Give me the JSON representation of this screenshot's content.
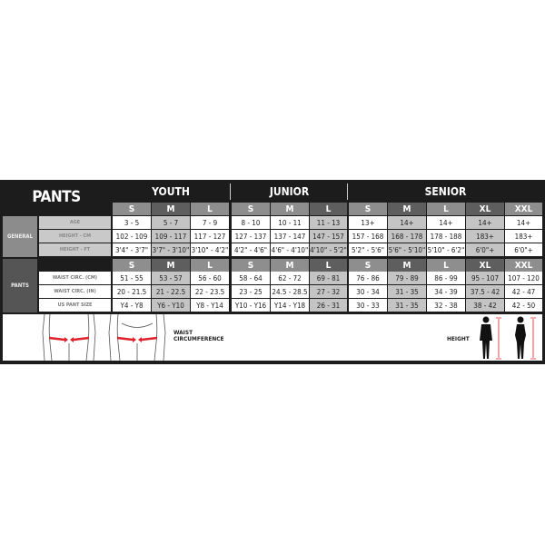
{
  "title": "PANTS",
  "groups": [
    {
      "name": "YOUTH",
      "sizes": [
        "S",
        "M",
        "L"
      ]
    },
    {
      "name": "JUNIOR",
      "sizes": [
        "S",
        "M",
        "L"
      ]
    },
    {
      "name": "SENIOR",
      "sizes": [
        "S",
        "M",
        "L",
        "XL",
        "XXL"
      ]
    }
  ],
  "sections": [
    {
      "label": "GENERAL",
      "show_sizes_header": false,
      "rows": [
        {
          "label": "AGE",
          "values": [
            "3 - 5",
            "5 - 7",
            "7 - 9",
            "8 - 10",
            "10 - 11",
            "11 - 13",
            "13+",
            "14+",
            "14+",
            "14+",
            "14+"
          ]
        },
        {
          "label": "HEIGHT - CM",
          "values": [
            "102 - 109",
            "109 - 117",
            "117 - 127",
            "127 - 137",
            "137 - 147",
            "147 - 157",
            "157 - 168",
            "168 - 178",
            "178 - 188",
            "183+",
            "183+"
          ]
        },
        {
          "label": "HEIGHT - FT",
          "values": [
            "3'4\" - 3'7\"",
            "3'7\" - 3'10\"",
            "3'10\" - 4'2\"",
            "4'2\" - 4'6\"",
            "4'6\" - 4'10\"",
            "4'10\" - 5'2\"",
            "5'2\" - 5'6\"",
            "5'6\" - 5'10\"",
            "5'10\" - 6'2\"",
            "6'0\"+",
            "6'0\"+"
          ]
        }
      ]
    },
    {
      "label": "PANTS",
      "show_sizes_header": true,
      "rows": [
        {
          "label": "WAIST CIRC. (CM)",
          "values": [
            "51 - 55",
            "53 - 57",
            "56 - 60",
            "58 - 64",
            "62 - 72",
            "69 - 81",
            "76 - 86",
            "79 - 89",
            "86 - 99",
            "95 - 107",
            "107 - 120"
          ]
        },
        {
          "label": "WAIST CIRC. (IN)",
          "values": [
            "20 - 21.5",
            "21 - 22.5",
            "22 - 23.5",
            "23 - 25",
            "24.5 - 28.5",
            "27 - 32",
            "30 - 34",
            "31 - 35",
            "34 - 39",
            "37.5 - 42",
            "42 - 47"
          ]
        },
        {
          "label": "US PANT SIZE",
          "values": [
            "Y4 - Y8",
            "Y6 - Y10",
            "Y8 - Y14",
            "Y10 - Y16",
            "Y14 - Y18",
            "26 - 31",
            "30 - 33",
            "31 - 35",
            "32 - 38",
            "38 - 42",
            "42 - 50"
          ]
        }
      ]
    }
  ],
  "shaded_columns": [
    false,
    true,
    false,
    false,
    false,
    true,
    false,
    true,
    false,
    true,
    false
  ],
  "illustration": {
    "waist_caption": [
      "WAIST",
      "CIRCUMFERENCE"
    ],
    "height_caption": "HEIGHT",
    "arrow_color": "#e0202a"
  },
  "colors": {
    "background": "#1c1c1c",
    "general_label": "#8c8c8c",
    "pants_label": "#555555",
    "size_header_light": "#8e8e8e",
    "size_header_dark": "#5e5e5e"
  }
}
